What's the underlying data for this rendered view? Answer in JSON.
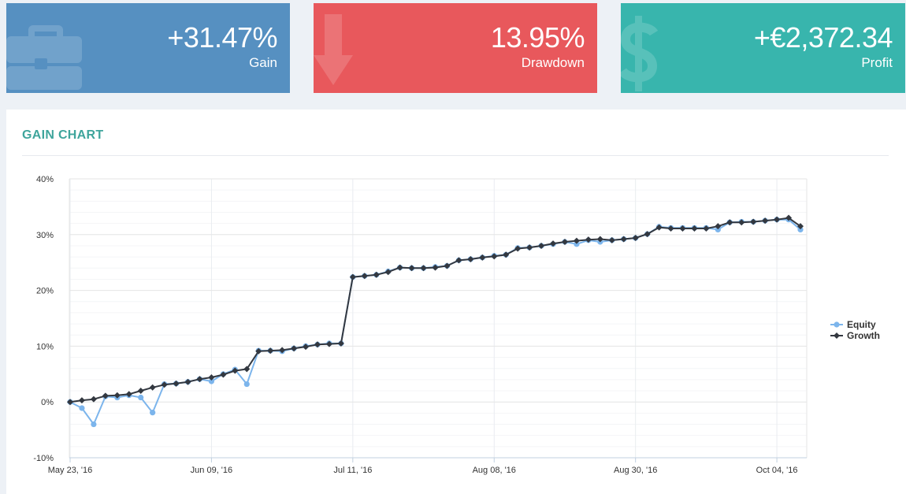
{
  "cards": {
    "gain": {
      "value": "+31.47%",
      "label": "Gain",
      "color": "#5690c1",
      "icon": "briefcase-icon"
    },
    "drawdown": {
      "value": "13.95%",
      "label": "Drawdown",
      "color": "#e8585c",
      "icon": "arrow-down-icon"
    },
    "profit": {
      "value": "+€2,372.34",
      "label": "Profit",
      "color": "#38b5ad",
      "icon": "dollar-icon"
    }
  },
  "panel": {
    "title": "GAIN CHART"
  },
  "chart_data": {
    "type": "line",
    "title": "GAIN CHART",
    "ylim": [
      -10,
      40
    ],
    "ytick_values": [
      -10,
      0,
      10,
      20,
      30,
      40
    ],
    "ytick_labels": [
      "-10%",
      "0%",
      "10%",
      "20%",
      "30%",
      "40%"
    ],
    "xtick_labels": [
      "May 23, '16",
      "Jun 09, '16",
      "Jul 11, '16",
      "Aug 08, '16",
      "Aug 30, '16",
      "Oct 04, '16"
    ],
    "xtick_index": [
      0,
      12,
      24,
      36,
      48,
      60
    ],
    "grid": true,
    "legend_position": "right",
    "series": [
      {
        "name": "Equity",
        "color": "#7cb5ec",
        "values": [
          0.0,
          -1.1,
          -4.0,
          1.0,
          0.8,
          1.2,
          0.8,
          -1.9,
          3.2,
          3.3,
          3.6,
          4.1,
          3.7,
          5.0,
          5.8,
          3.2,
          9.2,
          9.2,
          9.1,
          9.6,
          10.0,
          10.3,
          10.5,
          10.5,
          22.4,
          22.6,
          22.8,
          23.4,
          24.1,
          24.0,
          24.0,
          24.2,
          24.4,
          25.4,
          25.6,
          25.9,
          26.2,
          26.4,
          27.6,
          27.7,
          28.0,
          28.3,
          28.7,
          28.3,
          29.0,
          28.7,
          29.0,
          29.2,
          29.4,
          30.1,
          31.4,
          31.2,
          31.2,
          31.2,
          31.2,
          30.9,
          32.2,
          32.3,
          32.3,
          32.5,
          32.7,
          32.7,
          30.9
        ],
        "style": "markers"
      },
      {
        "name": "Growth",
        "color": "#333840",
        "values": [
          0.0,
          0.3,
          0.5,
          1.1,
          1.2,
          1.4,
          2.0,
          2.6,
          3.1,
          3.3,
          3.6,
          4.1,
          4.4,
          4.9,
          5.6,
          5.9,
          9.1,
          9.2,
          9.3,
          9.6,
          9.9,
          10.3,
          10.4,
          10.5,
          22.4,
          22.6,
          22.8,
          23.3,
          24.1,
          24.0,
          24.0,
          24.1,
          24.4,
          25.4,
          25.6,
          25.9,
          26.1,
          26.4,
          27.5,
          27.7,
          28.0,
          28.4,
          28.7,
          28.9,
          29.1,
          29.2,
          29.0,
          29.2,
          29.4,
          30.1,
          31.3,
          31.1,
          31.1,
          31.1,
          31.1,
          31.5,
          32.2,
          32.2,
          32.3,
          32.5,
          32.7,
          33.0,
          31.5
        ],
        "style": "diamonds"
      }
    ]
  }
}
